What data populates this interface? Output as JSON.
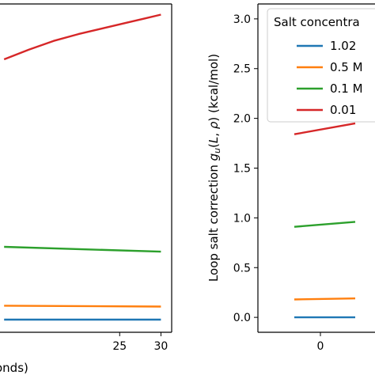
{
  "chart_data": [
    {
      "type": "line",
      "xlabel": "onds)",
      "ylabel": "",
      "xlim": [
        10.5,
        31.3
      ],
      "ylim": [
        -0.13,
        3.25
      ],
      "x_ticks": [
        {
          "value": 25,
          "label": "25"
        },
        {
          "value": 30,
          "label": "30"
        }
      ],
      "series": [
        {
          "color": "#d62728",
          "x": [
            11,
            14,
            17,
            20,
            23,
            26,
            28,
            30
          ],
          "y": [
            2.68,
            2.78,
            2.87,
            2.94,
            3.0,
            3.06,
            3.1,
            3.14
          ]
        },
        {
          "color": "#2ca02c",
          "x": [
            11,
            30
          ],
          "y": [
            0.75,
            0.7
          ]
        },
        {
          "color": "#ff7f0e",
          "x": [
            11,
            30
          ],
          "y": [
            0.144,
            0.135
          ]
        },
        {
          "color": "#1f77b4",
          "x": [
            11,
            30
          ],
          "y": [
            0.0,
            0.0
          ]
        }
      ]
    },
    {
      "type": "line",
      "xlabel": "",
      "ylabel": "Loop salt correction g_u(L, ρ) (kcal/mol)",
      "ylim": [
        -0.15,
        3.15
      ],
      "x_ticks": [
        {
          "value": 0,
          "label": "0"
        }
      ],
      "y_ticks": [
        {
          "value": 0.0,
          "label": "0.0"
        },
        {
          "value": 0.5,
          "label": "0.5"
        },
        {
          "value": 1.0,
          "label": "1.0"
        },
        {
          "value": 1.5,
          "label": "1.5"
        },
        {
          "value": 2.0,
          "label": "2.0"
        },
        {
          "value": 2.5,
          "label": "2.5"
        },
        {
          "value": 3.0,
          "label": "3.0"
        }
      ],
      "legend": {
        "title": "Salt concentra",
        "position": "top-right",
        "entries": [
          {
            "label": "1.02",
            "color": "#1f77b4"
          },
          {
            "label": "0.5 M",
            "color": "#ff7f0e"
          },
          {
            "label": "0.1 M",
            "color": "#2ca02c"
          },
          {
            "label": "0.01",
            "color": "#d62728"
          }
        ]
      },
      "series": [
        {
          "color": "#d62728",
          "x": [
            -0.6,
            0.8
          ],
          "y": [
            1.84,
            1.95
          ]
        },
        {
          "color": "#2ca02c",
          "x": [
            -0.6,
            0.8
          ],
          "y": [
            0.91,
            0.96
          ]
        },
        {
          "color": "#ff7f0e",
          "x": [
            -0.6,
            0.8
          ],
          "y": [
            0.18,
            0.19
          ]
        },
        {
          "color": "#1f77b4",
          "x": [
            -0.6,
            0.8
          ],
          "y": [
            0.0,
            0.0
          ]
        }
      ]
    }
  ]
}
